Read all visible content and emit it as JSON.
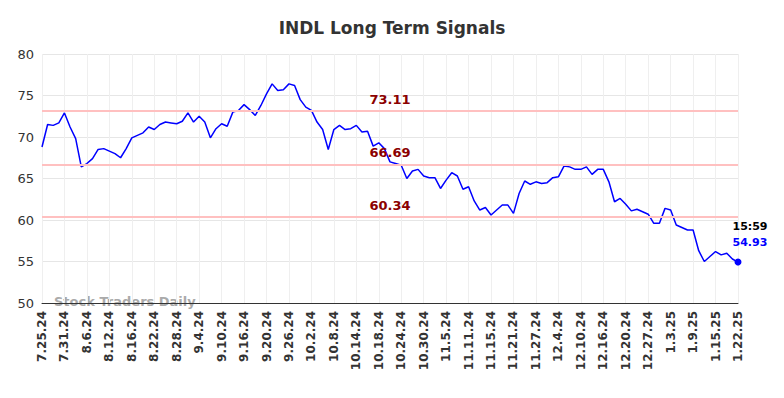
{
  "chart_data": {
    "type": "line",
    "title": "INDL Long Term Signals",
    "categories": [
      "7.25.24",
      null,
      null,
      null,
      "7.31.24",
      null,
      null,
      null,
      "8.6.24",
      null,
      null,
      null,
      "8.12.24",
      null,
      null,
      null,
      "8.16.24",
      null,
      null,
      null,
      "8.22.24",
      null,
      null,
      null,
      "8.28.24",
      null,
      null,
      null,
      "9.4.24",
      null,
      null,
      null,
      "9.10.24",
      null,
      null,
      null,
      "9.16.24",
      null,
      null,
      null,
      "9.20.24",
      null,
      null,
      null,
      "9.26.24",
      null,
      null,
      null,
      "10.2.24",
      null,
      null,
      null,
      "10.8.24",
      null,
      null,
      null,
      "10.14.24",
      null,
      null,
      null,
      "10.18.24",
      null,
      null,
      null,
      "10.24.24",
      null,
      null,
      null,
      "10.30.24",
      null,
      null,
      null,
      "11.5.24",
      null,
      null,
      null,
      "11.11.24",
      null,
      null,
      null,
      "11.15.24",
      null,
      null,
      null,
      "11.21.24",
      null,
      null,
      null,
      "11.27.24",
      null,
      null,
      null,
      "12.4.24",
      null,
      null,
      null,
      "12.10.24",
      null,
      null,
      null,
      "12.16.24",
      null,
      null,
      null,
      "12.20.24",
      null,
      null,
      null,
      "12.27.24",
      null,
      null,
      null,
      "1.3.25",
      null,
      null,
      null,
      "1.9.25",
      null,
      null,
      null,
      "1.15.25",
      null,
      null,
      null,
      "1.22.25"
    ],
    "values": [
      68.8,
      71.5,
      71.4,
      71.7,
      72.9,
      71.2,
      69.8,
      66.4,
      66.8,
      67.4,
      68.5,
      68.6,
      68.3,
      68.0,
      67.5,
      68.6,
      69.9,
      70.2,
      70.5,
      71.2,
      70.9,
      71.5,
      71.8,
      71.7,
      71.6,
      71.9,
      72.9,
      71.8,
      72.5,
      71.8,
      69.9,
      71.0,
      71.6,
      71.3,
      73.0,
      73.2,
      73.9,
      73.3,
      72.6,
      73.8,
      75.2,
      76.4,
      75.6,
      75.7,
      76.4,
      76.2,
      74.5,
      73.6,
      73.2,
      71.8,
      70.9,
      68.5,
      70.9,
      71.4,
      70.9,
      71.0,
      71.4,
      70.6,
      70.7,
      68.9,
      69.3,
      68.6,
      67.0,
      66.8,
      66.6,
      65.0,
      65.9,
      66.1,
      65.3,
      65.1,
      65.1,
      63.8,
      64.8,
      65.7,
      65.3,
      63.7,
      64.0,
      62.3,
      61.2,
      61.5,
      60.6,
      61.2,
      61.8,
      61.8,
      60.8,
      63.2,
      64.7,
      64.3,
      64.6,
      64.4,
      64.5,
      65.1,
      65.2,
      66.5,
      66.4,
      66.1,
      66.1,
      66.4,
      65.5,
      66.1,
      66.1,
      64.6,
      62.2,
      62.6,
      61.9,
      61.1,
      61.3,
      61.0,
      60.7,
      59.6,
      59.6,
      61.4,
      61.2,
      59.4,
      59.1,
      58.8,
      58.8,
      56.3,
      55.0,
      55.6,
      56.2,
      55.8,
      56.0,
      55.3,
      54.93
    ],
    "color": "#0000ff",
    "levels": [
      73.11,
      66.69,
      60.34
    ],
    "annotations": {
      "watermark": "Stock Traders Daily",
      "time": "15:59"
    },
    "ylim": [
      50,
      80
    ],
    "yticks": [
      50,
      55,
      60,
      65,
      70,
      75,
      80
    ],
    "grid": true
  }
}
